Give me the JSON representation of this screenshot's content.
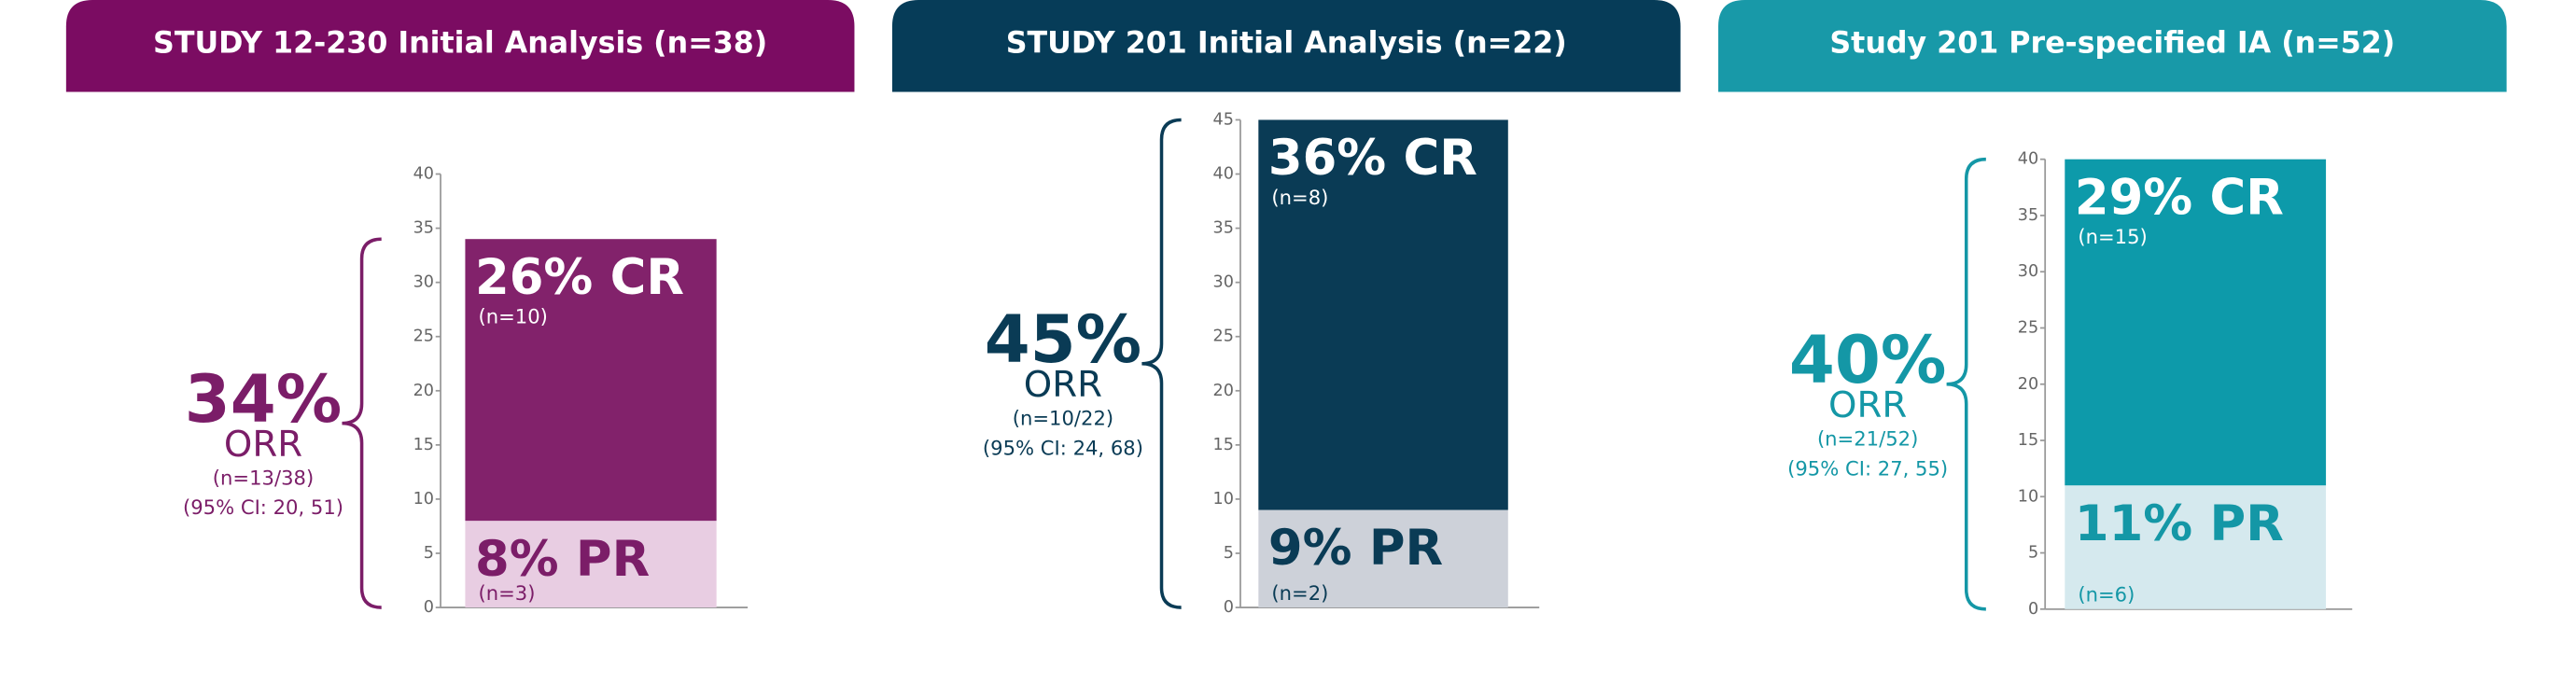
{
  "chart_data": [
    {
      "type": "bar",
      "title": "STUDY 12-230 Initial Analysis (n=38)",
      "header_color": "#7b0c62",
      "text_color": "#7b1d68",
      "ylim": [
        0,
        40
      ],
      "yticks": [
        0,
        5,
        10,
        15,
        20,
        25,
        30,
        35,
        40
      ],
      "series": [
        {
          "color": "#e8cde2",
          "values": [
            8
          ],
          "value_labels": [
            "8% PR"
          ],
          "sublabels": [
            "(n=3)"
          ]
        },
        {
          "color": "#82226b",
          "values": [
            26
          ],
          "value_labels": [
            "26% CR"
          ],
          "sublabels": [
            "(n=10)"
          ]
        }
      ],
      "orr": {
        "value": 34,
        "value_label": "34%",
        "label": "ORR",
        "n": "(n=13/38)",
        "ci": "(95% CI: 20, 51)"
      }
    },
    {
      "type": "bar",
      "title": "STUDY 201 Initial Analysis (n=22)",
      "header_color": "#063c58",
      "text_color": "#0a3b55",
      "ylim": [
        0,
        45
      ],
      "yticks": [
        0,
        5,
        10,
        15,
        20,
        25,
        30,
        35,
        40,
        45
      ],
      "series": [
        {
          "color": "#cdd1d9",
          "values": [
            9
          ],
          "value_labels": [
            "9% PR"
          ],
          "sublabels": [
            "(n=2)"
          ]
        },
        {
          "color": "#0a3b55",
          "values": [
            36
          ],
          "value_labels": [
            "36% CR"
          ],
          "sublabels": [
            "(n=8)"
          ]
        }
      ],
      "orr": {
        "value": 45,
        "value_label": "45%",
        "label": "ORR",
        "n": "(n=10/22)",
        "ci": "(95% CI: 24, 68)"
      }
    },
    {
      "type": "bar",
      "title": "Study 201 Pre-specified IA (n=52)",
      "header_color": "#1899a8",
      "text_color": "#1497a6",
      "ylim": [
        0,
        40
      ],
      "yticks": [
        0,
        5,
        10,
        15,
        20,
        25,
        30,
        35,
        40
      ],
      "series": [
        {
          "color": "#d5e9ee",
          "values": [
            11
          ],
          "value_labels": [
            "11% PR"
          ],
          "sublabels": [
            "(n=6)"
          ]
        },
        {
          "color": "#0d9aaa",
          "values": [
            29
          ],
          "value_labels": [
            "29% CR"
          ],
          "sublabels": [
            "(n=15)"
          ]
        }
      ],
      "orr": {
        "value": 40,
        "value_label": "40%",
        "label": "ORR",
        "n": "(n=21/52)",
        "ci": "(95% CI: 27, 55)"
      }
    }
  ]
}
